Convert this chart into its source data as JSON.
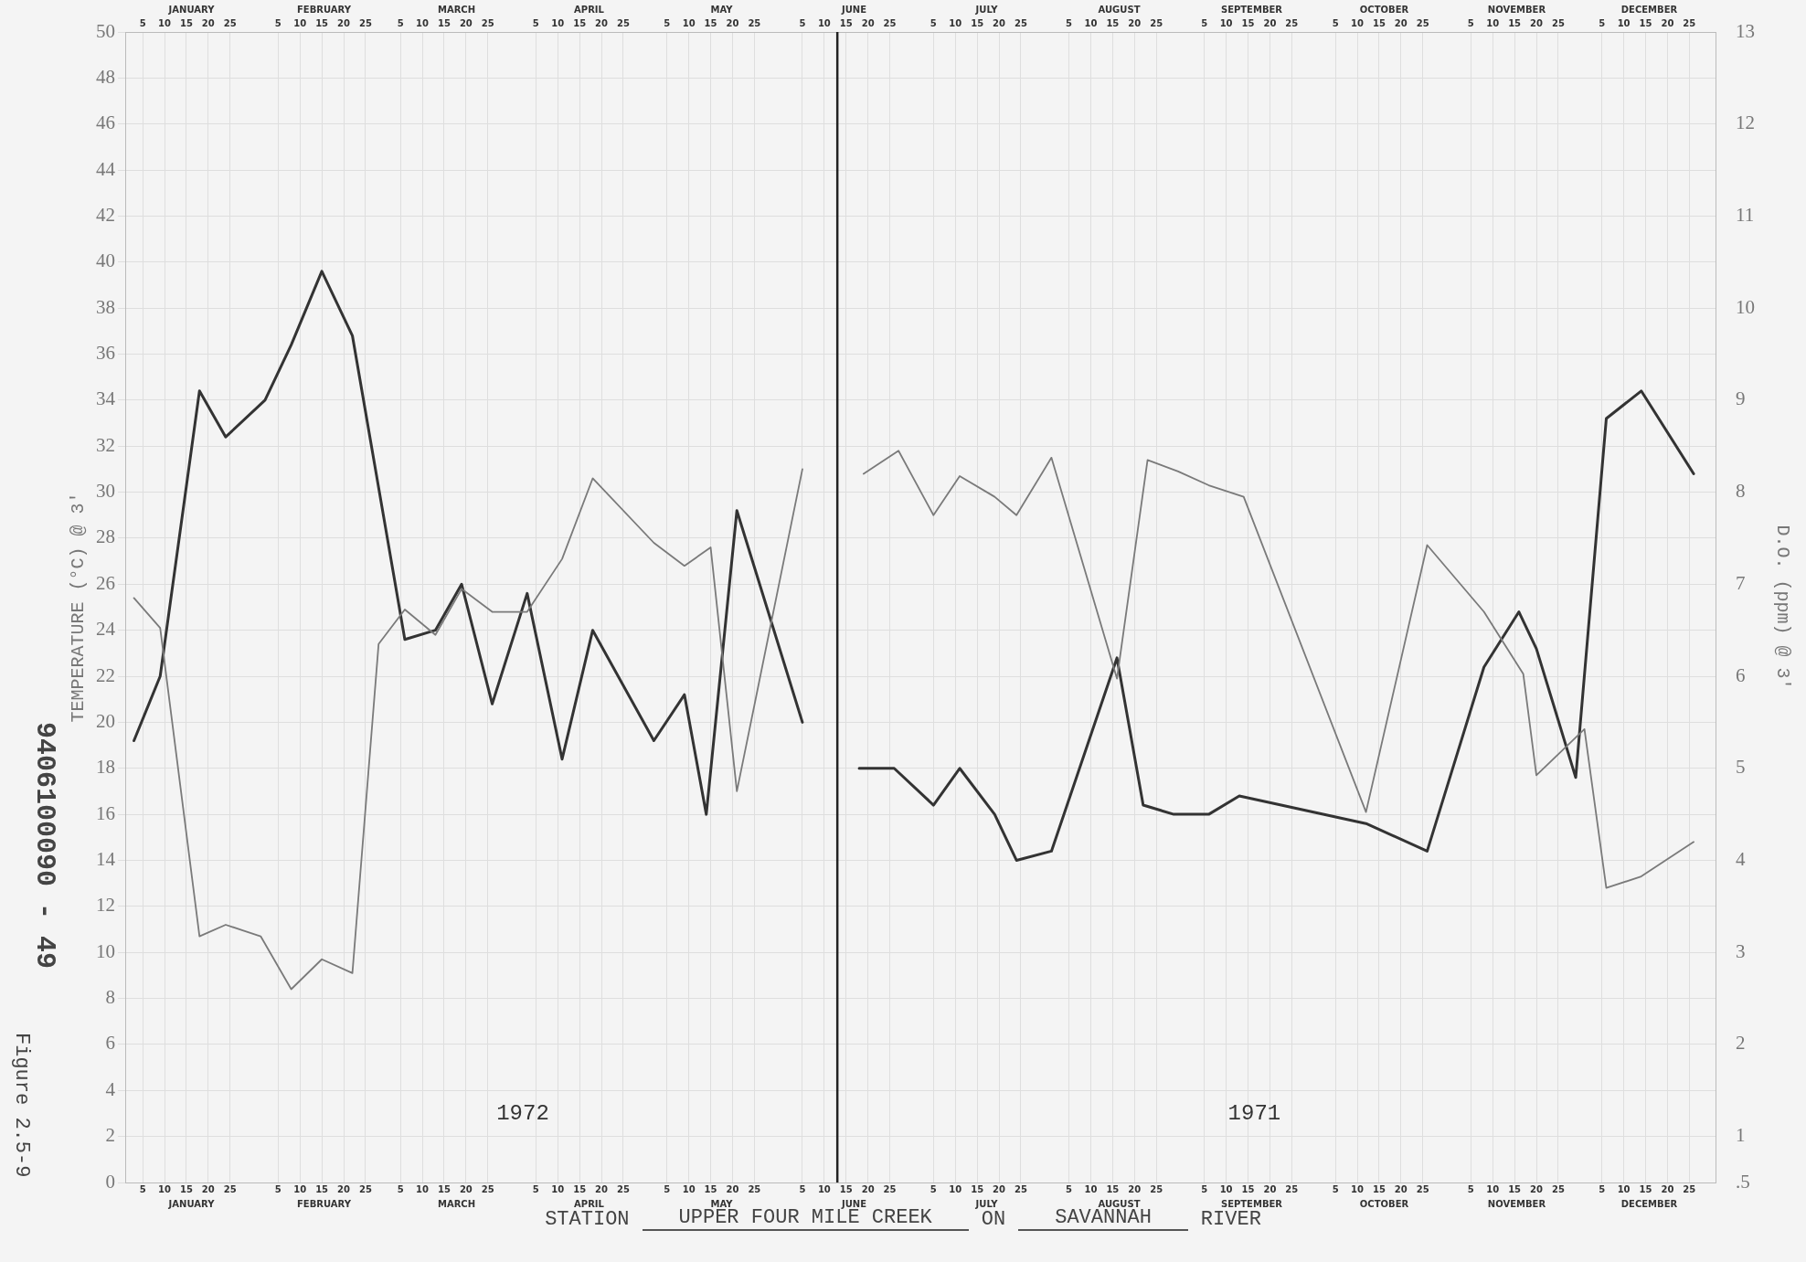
{
  "chart_data": {
    "type": "line",
    "ylabel": "TEMPERATURE (°C) @ 3'",
    "y2label": "D.O. (ppm) @ 3'",
    "series": [
      {
        "color": "#7a7a7a",
        "x": [
          "--01-03",
          "--01-09",
          "--01-18",
          "--01-24",
          "--02-01",
          "--02-08",
          "--02-15",
          "--02-22",
          "--02-28",
          "--03-06",
          "--03-13",
          "--03-19",
          "--03-26",
          "--04-03",
          "--04-11",
          "--04-18",
          "--05-02",
          "--05-09",
          "--05-15",
          "--05-21",
          "--06-05"
        ],
        "values": [
          25.4,
          24.1,
          10.7,
          11.2,
          10.7,
          8.4,
          9.7,
          9.1,
          23.4,
          24.9,
          23.8,
          25.8,
          24.8,
          24.8,
          27.1,
          30.6,
          27.8,
          26.8,
          27.6,
          17.0,
          31.0
        ]
      },
      {
        "color": "#333333",
        "axis": "y2",
        "x": [
          "--01-03",
          "--01-09",
          "--01-18",
          "--01-24",
          "--02-02",
          "--02-08",
          "--02-15",
          "--02-22",
          "--03-06",
          "--03-13",
          "--03-19",
          "--03-26",
          "--04-03",
          "--04-11",
          "--04-18",
          "--05-02",
          "--05-09",
          "--05-14",
          "--05-21",
          "--06-05"
        ],
        "values": [
          5.3,
          6.0,
          9.1,
          8.6,
          9.0,
          9.6,
          10.4,
          9.7,
          6.4,
          6.5,
          7.0,
          5.7,
          6.9,
          5.1,
          6.5,
          5.3,
          5.8,
          4.5,
          7.8,
          5.5
        ]
      },
      {
        "color": "#7a7a7a",
        "x": [
          "--06-19",
          "--06-27",
          "--07-05",
          "--07-11",
          "--07-19",
          "--07-24",
          "--08-01",
          "--08-16",
          "--08-23",
          "--08-30",
          "--09-06",
          "--09-14",
          "--10-12",
          "--10-26",
          "--11-08",
          "--11-17",
          "--11-20",
          "--12-01",
          "--12-06",
          "--12-14",
          "--12-26"
        ],
        "values": [
          30.8,
          31.8,
          29.0,
          30.7,
          29.8,
          29.0,
          31.5,
          21.9,
          31.4,
          30.9,
          30.3,
          29.8,
          16.1,
          27.7,
          24.8,
          22.1,
          17.7,
          19.7,
          12.8,
          13.3,
          14.8
        ]
      },
      {
        "color": "#333333",
        "axis": "y2",
        "x": [
          "--06-18",
          "--06-26",
          "--07-05",
          "--07-11",
          "--07-19",
          "--07-24",
          "--08-01",
          "--08-16",
          "--08-22",
          "--08-29",
          "--09-06",
          "--09-13",
          "--10-12",
          "--10-26",
          "--11-08",
          "--11-16",
          "--11-20",
          "--11-29",
          "--12-06",
          "--12-14",
          "--12-26"
        ],
        "values": [
          5.0,
          5.0,
          4.6,
          5.0,
          4.5,
          4.0,
          4.1,
          6.2,
          4.6,
          4.5,
          4.5,
          4.7,
          4.4,
          4.1,
          6.1,
          6.7,
          6.3,
          4.9,
          8.8,
          9.1,
          8.2
        ]
      }
    ],
    "xlim": [
      "--01-01",
      "--12-31"
    ],
    "xticks": [
      {
        "value": "--01-05",
        "label": "5"
      },
      {
        "value": "--01-10",
        "label": "10"
      },
      {
        "value": "--01-15",
        "label": "15"
      },
      {
        "value": "--01-20",
        "label": "20"
      },
      {
        "value": "--01-25",
        "label": "25"
      },
      {
        "value": "--02-05",
        "label": "5"
      },
      {
        "value": "--02-10",
        "label": "10"
      },
      {
        "value": "--02-15",
        "label": "15"
      },
      {
        "value": "--02-20",
        "label": "20"
      },
      {
        "value": "--02-25",
        "label": "25"
      },
      {
        "value": "--03-05",
        "label": "5"
      },
      {
        "value": "--03-10",
        "label": "10"
      },
      {
        "value": "--03-15",
        "label": "15"
      },
      {
        "value": "--03-20",
        "label": "20"
      },
      {
        "value": "--03-25",
        "label": "25"
      },
      {
        "value": "--04-05",
        "label": "5"
      },
      {
        "value": "--04-10",
        "label": "10"
      },
      {
        "value": "--04-15",
        "label": "15"
      },
      {
        "value": "--04-20",
        "label": "20"
      },
      {
        "value": "--04-25",
        "label": "25"
      },
      {
        "value": "--05-05",
        "label": "5"
      },
      {
        "value": "--05-10",
        "label": "10"
      },
      {
        "value": "--05-15",
        "label": "15"
      },
      {
        "value": "--05-20",
        "label": "20"
      },
      {
        "value": "--05-25",
        "label": "25"
      },
      {
        "value": "--06-05",
        "label": "5"
      },
      {
        "value": "--06-10",
        "label": "10"
      },
      {
        "value": "--06-15",
        "label": "15"
      },
      {
        "value": "--06-20",
        "label": "20"
      },
      {
        "value": "--06-25",
        "label": "25"
      },
      {
        "value": "--07-05",
        "label": "5"
      },
      {
        "value": "--07-10",
        "label": "10"
      },
      {
        "value": "--07-15",
        "label": "15"
      },
      {
        "value": "--07-20",
        "label": "20"
      },
      {
        "value": "--07-25",
        "label": "25"
      },
      {
        "value": "--08-05",
        "label": "5"
      },
      {
        "value": "--08-10",
        "label": "10"
      },
      {
        "value": "--08-15",
        "label": "15"
      },
      {
        "value": "--08-20",
        "label": "20"
      },
      {
        "value": "--08-25",
        "label": "25"
      },
      {
        "value": "--09-05",
        "label": "5"
      },
      {
        "value": "--09-10",
        "label": "10"
      },
      {
        "value": "--09-15",
        "label": "15"
      },
      {
        "value": "--09-20",
        "label": "20"
      },
      {
        "value": "--09-25",
        "label": "25"
      },
      {
        "value": "--10-05",
        "label": "5"
      },
      {
        "value": "--10-10",
        "label": "10"
      },
      {
        "value": "--10-15",
        "label": "15"
      },
      {
        "value": "--10-20",
        "label": "20"
      },
      {
        "value": "--10-25",
        "label": "25"
      },
      {
        "value": "--11-05",
        "label": "5"
      },
      {
        "value": "--11-10",
        "label": "10"
      },
      {
        "value": "--11-15",
        "label": "15"
      },
      {
        "value": "--11-20",
        "label": "20"
      },
      {
        "value": "--11-25",
        "label": "25"
      },
      {
        "value": "--12-05",
        "label": "5"
      },
      {
        "value": "--12-10",
        "label": "10"
      },
      {
        "value": "--12-15",
        "label": "15"
      },
      {
        "value": "--12-20",
        "label": "20"
      },
      {
        "value": "--12-25",
        "label": "25"
      }
    ],
    "x2lim": [
      "--01-01",
      "--12-31"
    ],
    "x2ticks": [
      {
        "value": "--01-05",
        "label": "5"
      },
      {
        "value": "--01-10",
        "label": "10"
      },
      {
        "value": "--01-15",
        "label": "15"
      },
      {
        "value": "--01-20",
        "label": "20"
      },
      {
        "value": "--01-25",
        "label": "25"
      },
      {
        "value": "--02-05",
        "label": "5"
      },
      {
        "value": "--02-10",
        "label": "10"
      },
      {
        "value": "--02-15",
        "label": "15"
      },
      {
        "value": "--02-20",
        "label": "20"
      },
      {
        "value": "--02-25",
        "label": "25"
      },
      {
        "value": "--03-05",
        "label": "5"
      },
      {
        "value": "--03-10",
        "label": "10"
      },
      {
        "value": "--03-15",
        "label": "15"
      },
      {
        "value": "--03-20",
        "label": "20"
      },
      {
        "value": "--03-25",
        "label": "25"
      },
      {
        "value": "--04-05",
        "label": "5"
      },
      {
        "value": "--04-10",
        "label": "10"
      },
      {
        "value": "--04-15",
        "label": "15"
      },
      {
        "value": "--04-20",
        "label": "20"
      },
      {
        "value": "--04-25",
        "label": "25"
      },
      {
        "value": "--05-05",
        "label": "5"
      },
      {
        "value": "--05-10",
        "label": "10"
      },
      {
        "value": "--05-15",
        "label": "15"
      },
      {
        "value": "--05-20",
        "label": "20"
      },
      {
        "value": "--05-25",
        "label": "25"
      },
      {
        "value": "--06-05",
        "label": "5"
      },
      {
        "value": "--06-10",
        "label": "10"
      },
      {
        "value": "--06-15",
        "label": "15"
      },
      {
        "value": "--06-20",
        "label": "20"
      },
      {
        "value": "--06-25",
        "label": "25"
      },
      {
        "value": "--07-05",
        "label": "5"
      },
      {
        "value": "--07-10",
        "label": "10"
      },
      {
        "value": "--07-15",
        "label": "15"
      },
      {
        "value": "--07-20",
        "label": "20"
      },
      {
        "value": "--07-25",
        "label": "25"
      },
      {
        "value": "--08-05",
        "label": "5"
      },
      {
        "value": "--08-10",
        "label": "10"
      },
      {
        "value": "--08-15",
        "label": "15"
      },
      {
        "value": "--08-20",
        "label": "20"
      },
      {
        "value": "--08-25",
        "label": "25"
      },
      {
        "value": "--09-05",
        "label": "5"
      },
      {
        "value": "--09-10",
        "label": "10"
      },
      {
        "value": "--09-15",
        "label": "15"
      },
      {
        "value": "--09-20",
        "label": "20"
      },
      {
        "value": "--09-25",
        "label": "25"
      },
      {
        "value": "--10-05",
        "label": "5"
      },
      {
        "value": "--10-10",
        "label": "10"
      },
      {
        "value": "--10-15",
        "label": "15"
      },
      {
        "value": "--10-20",
        "label": "20"
      },
      {
        "value": "--10-25",
        "label": "25"
      },
      {
        "value": "--11-05",
        "label": "5"
      },
      {
        "value": "--11-10",
        "label": "10"
      },
      {
        "value": "--11-15",
        "label": "15"
      },
      {
        "value": "--11-20",
        "label": "20"
      },
      {
        "value": "--11-25",
        "label": "25"
      },
      {
        "value": "--12-05",
        "label": "5"
      },
      {
        "value": "--12-10",
        "label": "10"
      },
      {
        "value": "--12-15",
        "label": "15"
      },
      {
        "value": "--12-20",
        "label": "20"
      },
      {
        "value": "--12-25",
        "label": "25"
      }
    ],
    "ylim": [
      0,
      50
    ],
    "yticks": [
      0,
      2,
      4,
      6,
      8,
      10,
      12,
      14,
      16,
      18,
      20,
      22,
      24,
      26,
      28,
      30,
      32,
      34,
      36,
      38,
      40,
      42,
      44,
      46,
      48,
      50
    ],
    "y2lim": [
      0.5,
      13
    ],
    "y2ticks": [
      {
        "value": 0.5,
        "label": ".5"
      },
      1,
      2,
      3,
      4,
      5,
      6,
      7,
      8,
      9,
      10,
      11,
      12,
      13
    ],
    "ref_lines": [
      {
        "axis": "x",
        "value": "--06-13",
        "label": null,
        "color": "#222222"
      }
    ],
    "annotations": [
      "1972",
      "1971",
      "JANUARY",
      "FEBRUARY",
      "MARCH",
      "APRIL",
      "MAY",
      "JUNE",
      "JULY",
      "AUGUST",
      "SEPTEMBER",
      "OCTOBER",
      "NOVEMBER",
      "DECEMBER",
      "STATION",
      "UPPER FOUR MILE CREEK",
      "ON",
      "SAVANNAH",
      "RIVER",
      "Figure 2.5-9",
      "9406100090 - 49"
    ],
    "grid": true
  }
}
